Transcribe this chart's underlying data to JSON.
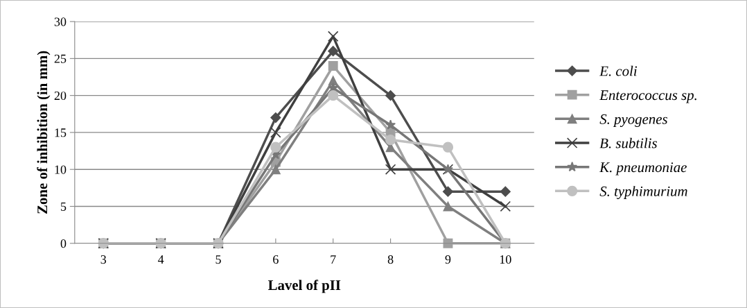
{
  "chart_data": {
    "type": "line",
    "xlabel": "Lavel of pII",
    "ylabel": "Zone of inhibition (in mm)",
    "categories": [
      "3",
      "4",
      "5",
      "6",
      "7",
      "8",
      "9",
      "10"
    ],
    "series": [
      {
        "name": "E. coli",
        "color": "#4d4d4d",
        "marker": "diamond",
        "values": [
          0,
          0,
          0,
          17,
          26,
          20,
          7,
          7
        ]
      },
      {
        "name": "Enterococcus sp.",
        "color": "#a0a0a0",
        "marker": "square",
        "values": [
          0,
          0,
          0,
          11,
          24,
          15,
          0,
          0
        ]
      },
      {
        "name": "S. pyogenes",
        "color": "#7f7f7f",
        "marker": "triangle",
        "values": [
          0,
          0,
          0,
          10,
          22,
          13,
          5,
          0
        ]
      },
      {
        "name": "B. subtilis",
        "color": "#3f3f3f",
        "marker": "cross",
        "values": [
          0,
          0,
          0,
          15,
          28,
          10,
          10,
          5
        ]
      },
      {
        "name": "K. pneumoniae",
        "color": "#777777",
        "marker": "star",
        "values": [
          0,
          0,
          0,
          12,
          21,
          16,
          10,
          0
        ]
      },
      {
        "name": "S. typhimurium",
        "color": "#c0c0c0",
        "marker": "circle",
        "values": [
          0,
          0,
          0,
          13,
          20,
          14,
          13,
          0
        ]
      }
    ],
    "ylim": [
      0,
      30
    ],
    "yticks": [
      0,
      5,
      10,
      15,
      20,
      25,
      30
    ],
    "grid": "y",
    "legend": "right"
  }
}
